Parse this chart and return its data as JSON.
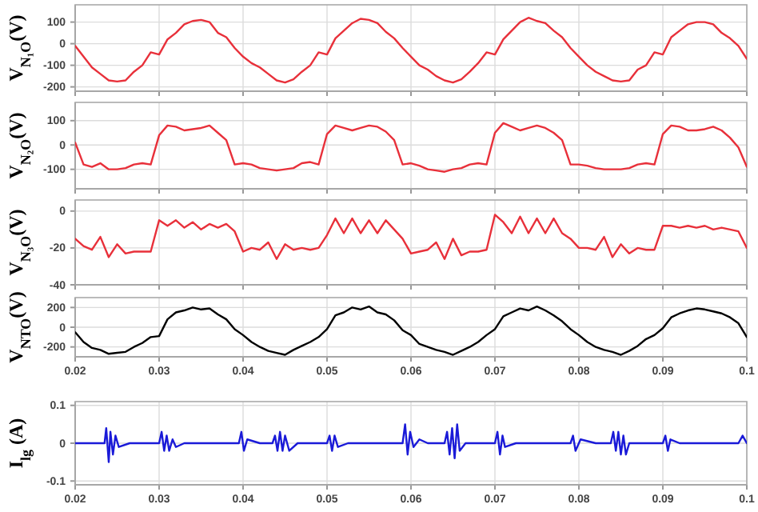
{
  "chart_data": [
    {
      "type": "line",
      "ylabel": "V$_{N₁O}$(V)",
      "xlim": [
        0.02,
        0.1
      ],
      "ylim": [
        -220,
        180
      ],
      "yticks": [
        -200,
        -100,
        0,
        100
      ],
      "xticks": [
        0.02,
        0.03,
        0.04,
        0.05,
        0.06,
        0.07,
        0.08,
        0.09,
        0.1
      ],
      "grid": true,
      "tick_labels": "y",
      "x": [
        0.02,
        0.021,
        0.022,
        0.023,
        0.024,
        0.025,
        0.026,
        0.027,
        0.028,
        0.029,
        0.03,
        0.031,
        0.032,
        0.033,
        0.034,
        0.035,
        0.036,
        0.037,
        0.038,
        0.039,
        0.04,
        0.041,
        0.042,
        0.043,
        0.044,
        0.045,
        0.046,
        0.047,
        0.048,
        0.049,
        0.05,
        0.051,
        0.052,
        0.053,
        0.054,
        0.055,
        0.056,
        0.057,
        0.058,
        0.059,
        0.06,
        0.061,
        0.062,
        0.063,
        0.064,
        0.065,
        0.066,
        0.067,
        0.068,
        0.069,
        0.07,
        0.071,
        0.072,
        0.073,
        0.074,
        0.075,
        0.076,
        0.077,
        0.078,
        0.079,
        0.08,
        0.081,
        0.082,
        0.083,
        0.084,
        0.085,
        0.086,
        0.087,
        0.088,
        0.089,
        0.09,
        0.091,
        0.092,
        0.093,
        0.094,
        0.095,
        0.096,
        0.097,
        0.098,
        0.099,
        0.1
      ],
      "series": [
        {
          "color": "#e8303a",
          "values": [
            -10,
            -60,
            -110,
            -140,
            -170,
            -175,
            -170,
            -130,
            -100,
            -40,
            -50,
            20,
            50,
            90,
            105,
            110,
            100,
            50,
            30,
            -20,
            -60,
            -90,
            -110,
            -140,
            -170,
            -180,
            -165,
            -130,
            -100,
            -40,
            -50,
            25,
            60,
            95,
            115,
            110,
            95,
            55,
            25,
            -20,
            -60,
            -100,
            -120,
            -150,
            -170,
            -180,
            -165,
            -130,
            -90,
            -40,
            -50,
            20,
            60,
            100,
            120,
            105,
            95,
            60,
            30,
            -20,
            -60,
            -100,
            -130,
            -150,
            -170,
            -175,
            -170,
            -120,
            -100,
            -40,
            -50,
            30,
            60,
            90,
            100,
            100,
            90,
            50,
            25,
            -10,
            -70
          ]
        }
      ]
    },
    {
      "type": "line",
      "ylabel": "V$_{N₂O}$(V)",
      "xlim": [
        0.02,
        0.1
      ],
      "ylim": [
        -180,
        175
      ],
      "yticks": [
        -100,
        0,
        100
      ],
      "xticks": [
        0.02,
        0.03,
        0.04,
        0.05,
        0.06,
        0.07,
        0.08,
        0.09,
        0.1
      ],
      "grid": true,
      "tick_labels": "y",
      "x": [
        0.02,
        0.021,
        0.022,
        0.023,
        0.024,
        0.025,
        0.026,
        0.027,
        0.028,
        0.029,
        0.03,
        0.031,
        0.032,
        0.033,
        0.034,
        0.035,
        0.036,
        0.037,
        0.038,
        0.039,
        0.04,
        0.041,
        0.042,
        0.043,
        0.044,
        0.045,
        0.046,
        0.047,
        0.048,
        0.049,
        0.05,
        0.051,
        0.052,
        0.053,
        0.054,
        0.055,
        0.056,
        0.057,
        0.058,
        0.059,
        0.06,
        0.061,
        0.062,
        0.063,
        0.064,
        0.065,
        0.066,
        0.067,
        0.068,
        0.069,
        0.07,
        0.071,
        0.072,
        0.073,
        0.074,
        0.075,
        0.076,
        0.077,
        0.078,
        0.079,
        0.08,
        0.081,
        0.082,
        0.083,
        0.084,
        0.085,
        0.086,
        0.087,
        0.088,
        0.089,
        0.09,
        0.091,
        0.092,
        0.093,
        0.094,
        0.095,
        0.096,
        0.097,
        0.098,
        0.099,
        0.1
      ],
      "series": [
        {
          "color": "#e8303a",
          "values": [
            10,
            -80,
            -90,
            -75,
            -100,
            -100,
            -95,
            -80,
            -75,
            -80,
            40,
            80,
            75,
            60,
            65,
            70,
            80,
            50,
            20,
            -80,
            -75,
            -80,
            -95,
            -100,
            -105,
            -100,
            -95,
            -75,
            -70,
            -80,
            45,
            80,
            70,
            60,
            70,
            80,
            75,
            55,
            20,
            -80,
            -75,
            -85,
            -100,
            -105,
            -110,
            -100,
            -95,
            -80,
            -75,
            -80,
            50,
            90,
            75,
            60,
            70,
            80,
            70,
            50,
            20,
            -80,
            -80,
            -85,
            -95,
            -100,
            -100,
            -100,
            -95,
            -80,
            -75,
            -80,
            45,
            80,
            75,
            60,
            60,
            65,
            75,
            60,
            30,
            -10,
            -90
          ]
        }
      ]
    },
    {
      "type": "line",
      "ylabel": "V$_{N₃O}$(V)",
      "xlim": [
        0.02,
        0.1
      ],
      "ylim": [
        -40,
        6
      ],
      "yticks": [
        -40,
        -20,
        0
      ],
      "xticks": [
        0.02,
        0.03,
        0.04,
        0.05,
        0.06,
        0.07,
        0.08,
        0.09,
        0.1
      ],
      "grid": true,
      "tick_labels": "y",
      "x": [
        0.02,
        0.021,
        0.022,
        0.023,
        0.024,
        0.025,
        0.026,
        0.027,
        0.028,
        0.029,
        0.03,
        0.031,
        0.032,
        0.033,
        0.034,
        0.035,
        0.036,
        0.037,
        0.038,
        0.039,
        0.04,
        0.041,
        0.042,
        0.043,
        0.044,
        0.045,
        0.046,
        0.047,
        0.048,
        0.049,
        0.05,
        0.051,
        0.052,
        0.053,
        0.054,
        0.055,
        0.056,
        0.057,
        0.058,
        0.059,
        0.06,
        0.061,
        0.062,
        0.063,
        0.064,
        0.065,
        0.066,
        0.067,
        0.068,
        0.069,
        0.07,
        0.071,
        0.072,
        0.073,
        0.074,
        0.075,
        0.076,
        0.077,
        0.078,
        0.079,
        0.08,
        0.081,
        0.082,
        0.083,
        0.084,
        0.085,
        0.086,
        0.087,
        0.088,
        0.089,
        0.09,
        0.091,
        0.092,
        0.093,
        0.094,
        0.095,
        0.096,
        0.097,
        0.098,
        0.099,
        0.1
      ],
      "series": [
        {
          "color": "#e8303a",
          "values": [
            -15,
            -19,
            -21,
            -14,
            -25,
            -18,
            -23,
            -22,
            -22,
            -22,
            -5,
            -8,
            -5,
            -9,
            -6,
            -10,
            -7,
            -9,
            -7,
            -11,
            -22,
            -20,
            -21,
            -17,
            -26,
            -18,
            -21,
            -20,
            -21,
            -20,
            -13,
            -4,
            -12,
            -4,
            -12,
            -5,
            -12,
            -5,
            -10,
            -15,
            -23,
            -22,
            -21,
            -17,
            -26,
            -15,
            -24,
            -22,
            -22,
            -21,
            -2,
            -6,
            -12,
            -3,
            -12,
            -4,
            -12,
            -4,
            -12,
            -15,
            -20,
            -20,
            -21,
            -14,
            -25,
            -18,
            -23,
            -20,
            -21,
            -21,
            -8,
            -8,
            -9,
            -8,
            -9,
            -8,
            -10,
            -9,
            -10,
            -11,
            -20
          ]
        }
      ]
    },
    {
      "type": "line",
      "ylabel": "V$_{NTO}$(V)",
      "xlim": [
        0.02,
        0.1
      ],
      "ylim": [
        -300,
        300
      ],
      "yticks": [
        -200,
        0,
        200
      ],
      "xticks": [
        0.02,
        0.03,
        0.04,
        0.05,
        0.06,
        0.07,
        0.08,
        0.09,
        0.1
      ],
      "grid": true,
      "x": [
        0.02,
        0.021,
        0.022,
        0.023,
        0.024,
        0.025,
        0.026,
        0.027,
        0.028,
        0.029,
        0.03,
        0.031,
        0.032,
        0.033,
        0.034,
        0.035,
        0.036,
        0.037,
        0.038,
        0.039,
        0.04,
        0.041,
        0.042,
        0.043,
        0.044,
        0.045,
        0.046,
        0.047,
        0.048,
        0.049,
        0.05,
        0.051,
        0.052,
        0.053,
        0.054,
        0.055,
        0.056,
        0.057,
        0.058,
        0.059,
        0.06,
        0.061,
        0.062,
        0.063,
        0.064,
        0.065,
        0.066,
        0.067,
        0.068,
        0.069,
        0.07,
        0.071,
        0.072,
        0.073,
        0.074,
        0.075,
        0.076,
        0.077,
        0.078,
        0.079,
        0.08,
        0.081,
        0.082,
        0.083,
        0.084,
        0.085,
        0.086,
        0.087,
        0.088,
        0.089,
        0.09,
        0.091,
        0.092,
        0.093,
        0.094,
        0.095,
        0.096,
        0.097,
        0.098,
        0.099,
        0.1
      ],
      "series": [
        {
          "color": "#000000",
          "values": [
            -50,
            -150,
            -210,
            -230,
            -270,
            -260,
            -250,
            -200,
            -160,
            -100,
            -90,
            80,
            150,
            170,
            200,
            180,
            190,
            130,
            80,
            -20,
            -80,
            -150,
            -200,
            -240,
            -260,
            -280,
            -230,
            -190,
            -150,
            -100,
            -20,
            120,
            150,
            200,
            180,
            210,
            150,
            130,
            70,
            -30,
            -80,
            -170,
            -200,
            -230,
            -250,
            -280,
            -240,
            -200,
            -150,
            -80,
            -20,
            110,
            150,
            190,
            170,
            210,
            170,
            120,
            60,
            -20,
            -80,
            -150,
            -200,
            -230,
            -250,
            -280,
            -240,
            -190,
            -120,
            -80,
            -10,
            100,
            140,
            170,
            190,
            180,
            160,
            140,
            100,
            40,
            -100
          ]
        }
      ]
    },
    {
      "type": "line",
      "ylabel": "I$_{lg}$ (A)",
      "xlim": [
        0.02,
        0.1
      ],
      "ylim": [
        -0.11,
        0.11
      ],
      "yticks": [
        -0.1,
        0,
        0.1
      ],
      "xticks": [
        0.02,
        0.03,
        0.04,
        0.05,
        0.06,
        0.07,
        0.08,
        0.09,
        0.1
      ],
      "grid": true,
      "series": [
        {
          "color": "#1a1ad8",
          "x": [
            0.02,
            0.022,
            0.0235,
            0.0237,
            0.024,
            0.0242,
            0.0245,
            0.0248,
            0.0252,
            0.0265,
            0.03,
            0.0303,
            0.0306,
            0.0309,
            0.0312,
            0.0316,
            0.032,
            0.033,
            0.0395,
            0.0398,
            0.0401,
            0.0405,
            0.042,
            0.0435,
            0.0438,
            0.0441,
            0.0444,
            0.0447,
            0.045,
            0.0455,
            0.0465,
            0.05,
            0.0503,
            0.0506,
            0.0509,
            0.0513,
            0.0525,
            0.059,
            0.0593,
            0.0596,
            0.0599,
            0.0603,
            0.061,
            0.062,
            0.064,
            0.0643,
            0.0646,
            0.0649,
            0.0652,
            0.0655,
            0.0658,
            0.0665,
            0.07,
            0.0703,
            0.0706,
            0.0709,
            0.0712,
            0.0725,
            0.079,
            0.0793,
            0.0796,
            0.0802,
            0.082,
            0.0838,
            0.0841,
            0.0844,
            0.0847,
            0.085,
            0.0853,
            0.0856,
            0.086,
            0.09,
            0.0903,
            0.0906,
            0.0909,
            0.092,
            0.099,
            0.0995,
            0.1
          ],
          "values": [
            0,
            0,
            0,
            0.04,
            -0.05,
            0.03,
            -0.03,
            0.02,
            -0.01,
            0,
            0,
            0.03,
            -0.02,
            0.02,
            -0.02,
            0.01,
            -0.01,
            0,
            0,
            0.03,
            -0.02,
            0.01,
            0,
            0,
            0.02,
            -0.02,
            0.03,
            -0.02,
            0.02,
            -0.02,
            0,
            0,
            0.02,
            -0.02,
            0.02,
            -0.01,
            0,
            0,
            0.05,
            -0.03,
            0.03,
            -0.01,
            0.01,
            0,
            0,
            0.03,
            -0.03,
            0.04,
            -0.04,
            0.05,
            -0.02,
            0,
            0,
            0.03,
            -0.03,
            0.02,
            -0.01,
            0,
            0,
            0.02,
            -0.02,
            0.01,
            0,
            0,
            0.03,
            -0.02,
            0.03,
            -0.03,
            0.02,
            -0.03,
            0,
            0,
            0.02,
            -0.02,
            0.01,
            0,
            0,
            0.02,
            0
          ]
        }
      ]
    }
  ]
}
